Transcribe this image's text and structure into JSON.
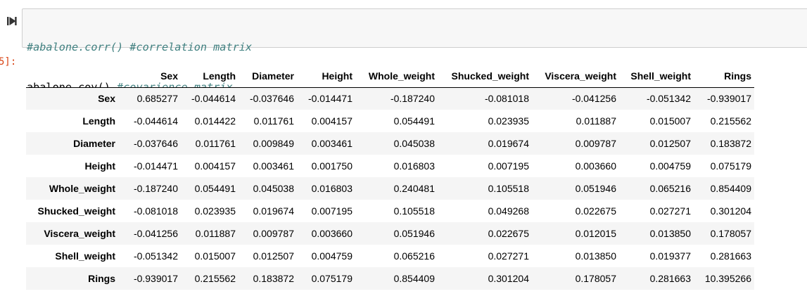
{
  "input": {
    "lines": [
      {
        "code": "",
        "comment": "#abalone.corr() #correlation matrix"
      },
      {
        "code": "abalone.cov() ",
        "comment": "#covarience matrix"
      }
    ]
  },
  "output": {
    "prompt": "5]:",
    "table": {
      "columns": [
        "Sex",
        "Length",
        "Diameter",
        "Height",
        "Whole_weight",
        "Shucked_weight",
        "Viscera_weight",
        "Shell_weight",
        "Rings"
      ],
      "rows": [
        {
          "label": "Sex",
          "values": [
            "0.685277",
            "-0.044614",
            "-0.037646",
            "-0.014471",
            "-0.187240",
            "-0.081018",
            "-0.041256",
            "-0.051342",
            "-0.939017"
          ]
        },
        {
          "label": "Length",
          "values": [
            "-0.044614",
            "0.014422",
            "0.011761",
            "0.004157",
            "0.054491",
            "0.023935",
            "0.011887",
            "0.015007",
            "0.215562"
          ]
        },
        {
          "label": "Diameter",
          "values": [
            "-0.037646",
            "0.011761",
            "0.009849",
            "0.003461",
            "0.045038",
            "0.019674",
            "0.009787",
            "0.012507",
            "0.183872"
          ]
        },
        {
          "label": "Height",
          "values": [
            "-0.014471",
            "0.004157",
            "0.003461",
            "0.001750",
            "0.016803",
            "0.007195",
            "0.003660",
            "0.004759",
            "0.075179"
          ]
        },
        {
          "label": "Whole_weight",
          "values": [
            "-0.187240",
            "0.054491",
            "0.045038",
            "0.016803",
            "0.240481",
            "0.105518",
            "0.051946",
            "0.065216",
            "0.854409"
          ]
        },
        {
          "label": "Shucked_weight",
          "values": [
            "-0.081018",
            "0.023935",
            "0.019674",
            "0.007195",
            "0.105518",
            "0.049268",
            "0.022675",
            "0.027271",
            "0.301204"
          ]
        },
        {
          "label": "Viscera_weight",
          "values": [
            "-0.041256",
            "0.011887",
            "0.009787",
            "0.003660",
            "0.051946",
            "0.022675",
            "0.012015",
            "0.013850",
            "0.178057"
          ]
        },
        {
          "label": "Shell_weight",
          "values": [
            "-0.051342",
            "0.015007",
            "0.012507",
            "0.004759",
            "0.065216",
            "0.027271",
            "0.013850",
            "0.019377",
            "0.281663"
          ]
        },
        {
          "label": "Rings",
          "values": [
            "-0.939017",
            "0.215562",
            "0.183872",
            "0.075179",
            "0.854409",
            "0.301204",
            "0.178057",
            "0.281663",
            "10.395266"
          ]
        }
      ]
    }
  },
  "icons": {
    "run": "step-run-icon"
  },
  "colors": {
    "comment": "#408080",
    "prompt": "#d84315",
    "stripe": "#f5f5f5",
    "code_bg": "#f7f7f7"
  }
}
